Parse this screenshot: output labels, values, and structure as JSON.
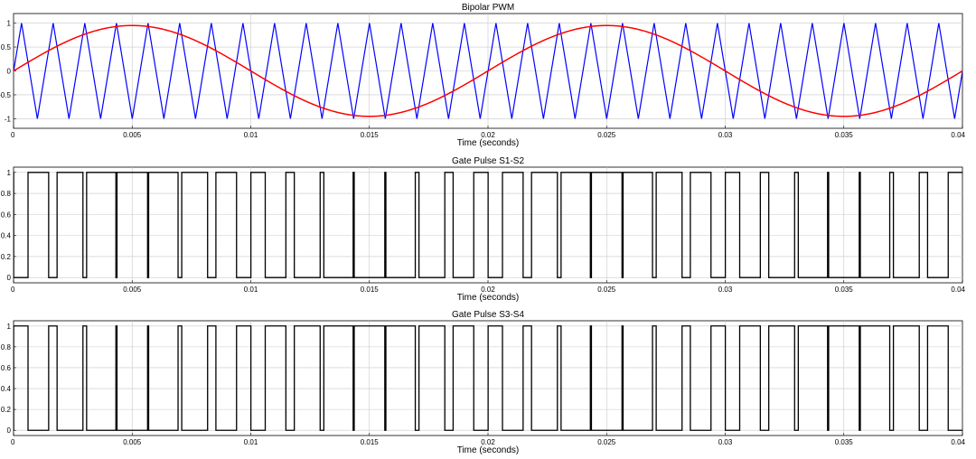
{
  "chart_data": [
    {
      "type": "line",
      "title": "Bipolar PWM",
      "xlabel": "Time (seconds)",
      "ylabel": "",
      "xlim": [
        0,
        0.04
      ],
      "ylim": [
        -1.2,
        1.2
      ],
      "grid": true,
      "x_ticks": [
        0,
        0.005,
        0.01,
        0.015,
        0.02,
        0.025,
        0.03,
        0.035,
        0.04
      ],
      "x_tick_labels": [
        "0",
        "0.005",
        "0.01",
        "0.015",
        "0.02",
        "0.025",
        "0.03",
        "0.035",
        "0.04"
      ],
      "y_ticks": [
        -1,
        -0.5,
        0,
        0.5,
        1
      ],
      "y_tick_labels": [
        "-1",
        "-0.5",
        "0",
        "0.5",
        "1"
      ],
      "series": [
        {
          "kind": "triangle-carrier",
          "color": "#0000ff",
          "frequency_hz": 750,
          "amplitude": 1,
          "phase_offset_s": 0.00033,
          "x": [
            0,
            0.04
          ]
        },
        {
          "kind": "sine-reference",
          "color": "#ff0000",
          "frequency_hz": 50,
          "amplitude": 0.95,
          "x": [
            0,
            0.04
          ]
        }
      ]
    },
    {
      "type": "line",
      "title": "Gate Pulse S1-S2",
      "xlabel": "Time (seconds)",
      "ylabel": "",
      "xlim": [
        0,
        0.04
      ],
      "ylim": [
        -0.05,
        1.05
      ],
      "grid": true,
      "x_ticks": [
        0,
        0.005,
        0.01,
        0.015,
        0.02,
        0.025,
        0.03,
        0.035,
        0.04
      ],
      "x_tick_labels": [
        "0",
        "0.005",
        "0.01",
        "0.015",
        "0.02",
        "0.025",
        "0.03",
        "0.035",
        "0.04"
      ],
      "y_ticks": [
        0,
        0.2,
        0.4,
        0.6,
        0.8,
        1
      ],
      "y_tick_labels": [
        "0",
        "0.2",
        "0.4",
        "0.6",
        "0.8",
        "1"
      ],
      "series": [
        {
          "kind": "gate-pulse",
          "color": "#000000",
          "logic": "reference_gt_carrier",
          "values": [
            0,
            1
          ]
        }
      ]
    },
    {
      "type": "line",
      "title": "Gate Pulse S3-S4",
      "xlabel": "Time (seconds)",
      "ylabel": "",
      "xlim": [
        0,
        0.04
      ],
      "ylim": [
        -0.05,
        1.05
      ],
      "grid": true,
      "x_ticks": [
        0,
        0.005,
        0.01,
        0.015,
        0.02,
        0.025,
        0.03,
        0.035,
        0.04
      ],
      "x_tick_labels": [
        "0",
        "0.005",
        "0.01",
        "0.015",
        "0.02",
        "0.025",
        "0.03",
        "0.035",
        "0.04"
      ],
      "y_ticks": [
        0,
        0.2,
        0.4,
        0.6,
        0.8,
        1
      ],
      "y_tick_labels": [
        "0",
        "0.2",
        "0.4",
        "0.6",
        "0.8",
        "1"
      ],
      "series": [
        {
          "kind": "gate-pulse",
          "color": "#000000",
          "logic": "reference_lt_carrier",
          "values": [
            0,
            1
          ]
        }
      ]
    }
  ]
}
